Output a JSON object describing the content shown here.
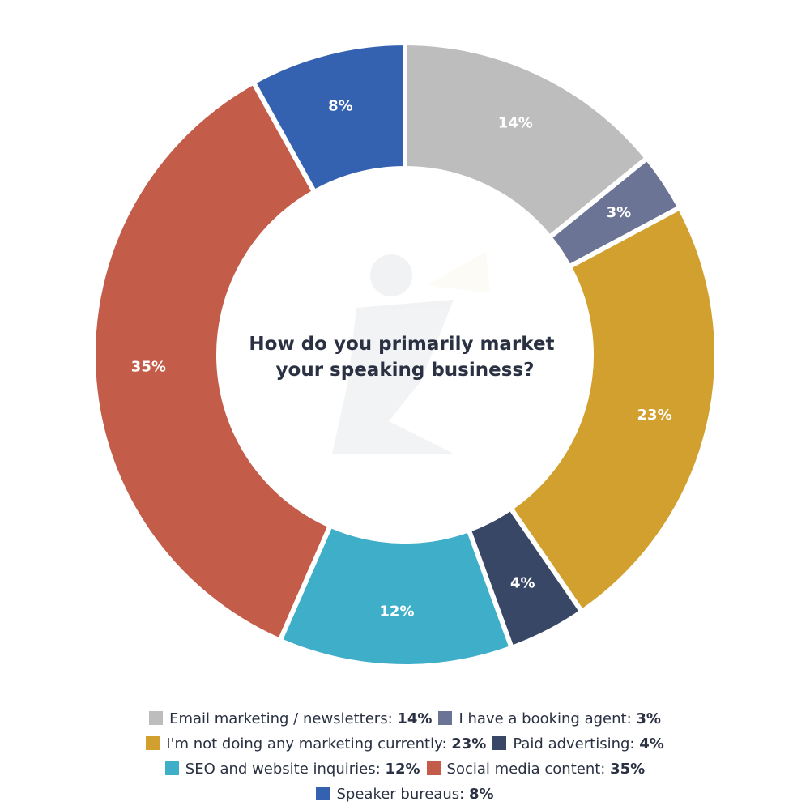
{
  "chart_data": {
    "type": "pie",
    "donut": true,
    "title": "How do you primarily market your speaking business?",
    "title_lines": [
      "How do you primarily market",
      "your speaking business?"
    ],
    "slices": [
      {
        "name": "Email marketing / newsletters",
        "value": 14,
        "label": "14%",
        "color": "#bdbdbd"
      },
      {
        "name": "I have a booking agent",
        "value": 3,
        "label": "3%",
        "color": "#6b7494"
      },
      {
        "name": "I'm not doing any marketing currently",
        "value": 23,
        "label": "23%",
        "color": "#d1a02e"
      },
      {
        "name": "Paid advertising",
        "value": 4,
        "label": "4%",
        "color": "#394766"
      },
      {
        "name": "SEO and website inquiries",
        "value": 12,
        "label": "12%",
        "color": "#3eaec9"
      },
      {
        "name": "Social media content",
        "value": 35,
        "label": "35%",
        "color": "#c45c4a"
      },
      {
        "name": "Speaker bureaus",
        "value": 8,
        "label": "8%",
        "color": "#3462b0"
      }
    ],
    "legend": {
      "position": "bottom",
      "rows": [
        [
          0,
          1
        ],
        [
          2,
          3
        ],
        [
          4,
          5
        ],
        [
          6
        ]
      ]
    }
  }
}
